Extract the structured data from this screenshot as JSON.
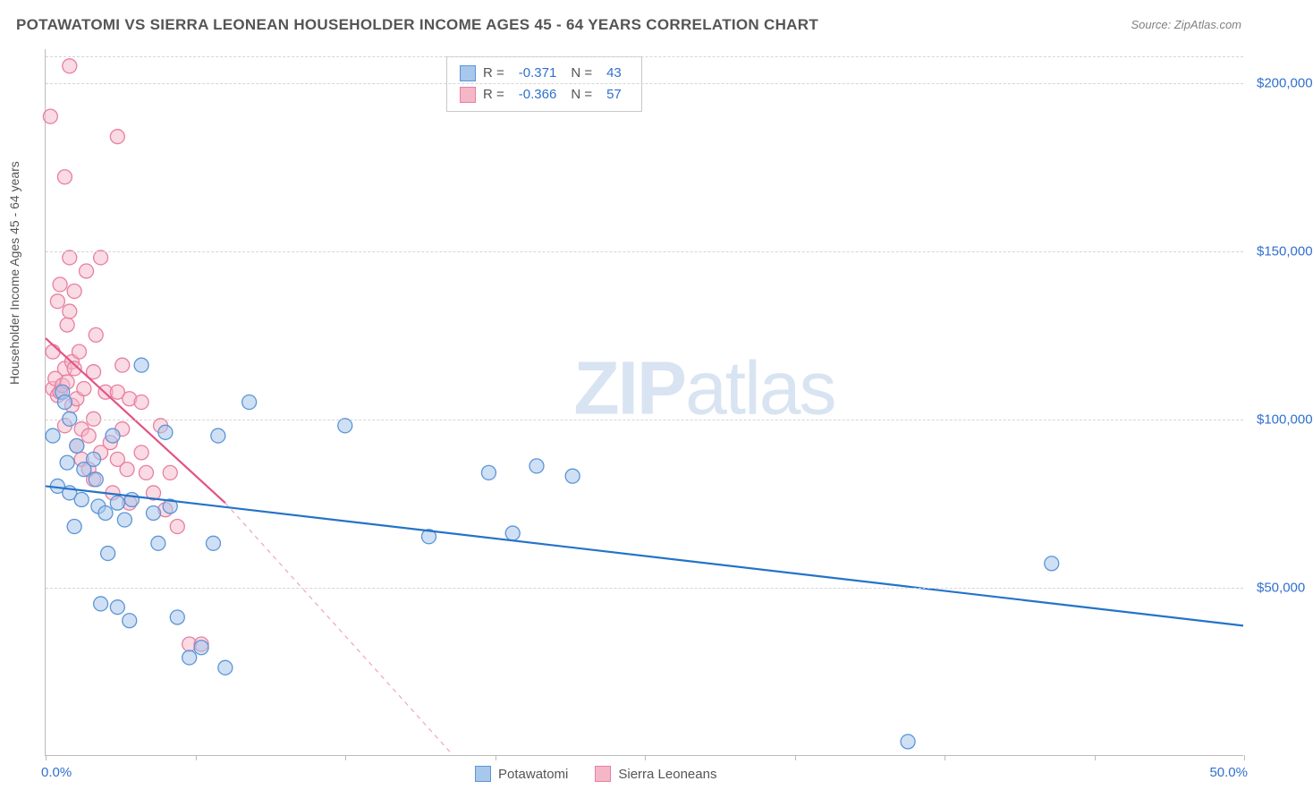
{
  "title": "POTAWATOMI VS SIERRA LEONEAN HOUSEHOLDER INCOME AGES 45 - 64 YEARS CORRELATION CHART",
  "source": "Source: ZipAtlas.com",
  "ylabel": "Householder Income Ages 45 - 64 years",
  "watermark_zip": "ZIP",
  "watermark_atlas": "atlas",
  "chart": {
    "type": "scatter",
    "xlim": [
      0,
      50
    ],
    "ylim": [
      0,
      210000
    ],
    "x_format": "percent",
    "y_format": "currency",
    "xmin_label": "0.0%",
    "xmax_label": "50.0%",
    "yticks": [
      {
        "v": 50000,
        "label": "$50,000"
      },
      {
        "v": 100000,
        "label": "$100,000"
      },
      {
        "v": 150000,
        "label": "$150,000"
      },
      {
        "v": 200000,
        "label": "$200,000"
      }
    ],
    "xtick_positions": [
      0,
      6.25,
      12.5,
      18.75,
      25,
      31.25,
      37.5,
      43.75,
      50
    ],
    "grid_color": "#d5d5d5",
    "background_color": "#ffffff",
    "marker_radius": 8,
    "marker_stroke_width": 1.3,
    "trend_width_solid": 2.2,
    "trend_width_dash": 1.2
  },
  "series": [
    {
      "name": "Potawatomi",
      "fill": "#a7c7ec",
      "stroke": "#5b95d6",
      "fill_opacity": 0.55,
      "R": "-0.371",
      "N": "43",
      "trend": {
        "x1": 0,
        "y1": 80000,
        "x2": 50,
        "y2": 38500,
        "color": "#2473c8"
      },
      "points": [
        [
          0.3,
          95000
        ],
        [
          0.5,
          80000
        ],
        [
          0.7,
          108000
        ],
        [
          0.8,
          105000
        ],
        [
          0.9,
          87000
        ],
        [
          1.0,
          100000
        ],
        [
          1.0,
          78000
        ],
        [
          1.2,
          68000
        ],
        [
          1.3,
          92000
        ],
        [
          1.5,
          76000
        ],
        [
          1.6,
          85000
        ],
        [
          2.0,
          88000
        ],
        [
          2.1,
          82000
        ],
        [
          2.2,
          74000
        ],
        [
          2.3,
          45000
        ],
        [
          2.5,
          72000
        ],
        [
          2.6,
          60000
        ],
        [
          2.8,
          95000
        ],
        [
          3.0,
          75000
        ],
        [
          3.0,
          44000
        ],
        [
          3.3,
          70000
        ],
        [
          3.5,
          40000
        ],
        [
          3.6,
          76000
        ],
        [
          4.0,
          116000
        ],
        [
          4.5,
          72000
        ],
        [
          4.7,
          63000
        ],
        [
          5.0,
          96000
        ],
        [
          5.2,
          74000
        ],
        [
          5.5,
          41000
        ],
        [
          6.0,
          29000
        ],
        [
          6.5,
          32000
        ],
        [
          7.0,
          63000
        ],
        [
          7.2,
          95000
        ],
        [
          7.5,
          26000
        ],
        [
          8.5,
          105000
        ],
        [
          12.5,
          98000
        ],
        [
          16.0,
          65000
        ],
        [
          18.5,
          84000
        ],
        [
          19.5,
          66000
        ],
        [
          20.5,
          86000
        ],
        [
          22.0,
          83000
        ],
        [
          36.0,
          4000
        ],
        [
          42.0,
          57000
        ]
      ]
    },
    {
      "name": "Sierra Leoneans",
      "fill": "#f5b6c8",
      "stroke": "#e77fa3",
      "fill_opacity": 0.5,
      "R": "-0.366",
      "N": "57",
      "trend": {
        "x1": 0,
        "y1": 124000,
        "x2": 7.5,
        "y2": 75000,
        "color": "#e35284"
      },
      "trend_dash": {
        "x1": 7.5,
        "y1": 75000,
        "x2": 17.0,
        "y2": 0,
        "color": "#f0a4bb"
      },
      "points": [
        [
          0.2,
          190000
        ],
        [
          0.3,
          120000
        ],
        [
          0.3,
          109000
        ],
        [
          0.4,
          112000
        ],
        [
          0.5,
          135000
        ],
        [
          0.5,
          107000
        ],
        [
          0.6,
          140000
        ],
        [
          0.6,
          108000
        ],
        [
          0.7,
          110000
        ],
        [
          0.8,
          115000
        ],
        [
          0.8,
          98000
        ],
        [
          0.8,
          172000
        ],
        [
          0.9,
          128000
        ],
        [
          0.9,
          111000
        ],
        [
          1.0,
          148000
        ],
        [
          1.0,
          132000
        ],
        [
          1.0,
          205000
        ],
        [
          1.1,
          117000
        ],
        [
          1.1,
          104000
        ],
        [
          1.2,
          138000
        ],
        [
          1.2,
          115000
        ],
        [
          1.3,
          106000
        ],
        [
          1.3,
          92000
        ],
        [
          1.4,
          120000
        ],
        [
          1.5,
          88000
        ],
        [
          1.5,
          97000
        ],
        [
          1.6,
          109000
        ],
        [
          1.7,
          144000
        ],
        [
          1.8,
          95000
        ],
        [
          1.8,
          85000
        ],
        [
          2.0,
          114000
        ],
        [
          2.0,
          82000
        ],
        [
          2.0,
          100000
        ],
        [
          2.1,
          125000
        ],
        [
          2.3,
          90000
        ],
        [
          2.3,
          148000
        ],
        [
          2.5,
          108000
        ],
        [
          2.7,
          93000
        ],
        [
          2.8,
          78000
        ],
        [
          3.0,
          184000
        ],
        [
          3.0,
          108000
        ],
        [
          3.0,
          88000
        ],
        [
          3.2,
          97000
        ],
        [
          3.2,
          116000
        ],
        [
          3.4,
          85000
        ],
        [
          3.5,
          106000
        ],
        [
          3.5,
          75000
        ],
        [
          4.0,
          105000
        ],
        [
          4.0,
          90000
        ],
        [
          4.2,
          84000
        ],
        [
          4.5,
          78000
        ],
        [
          4.8,
          98000
        ],
        [
          5.0,
          73000
        ],
        [
          5.2,
          84000
        ],
        [
          5.5,
          68000
        ],
        [
          6.0,
          33000
        ],
        [
          6.5,
          33000
        ]
      ]
    }
  ]
}
